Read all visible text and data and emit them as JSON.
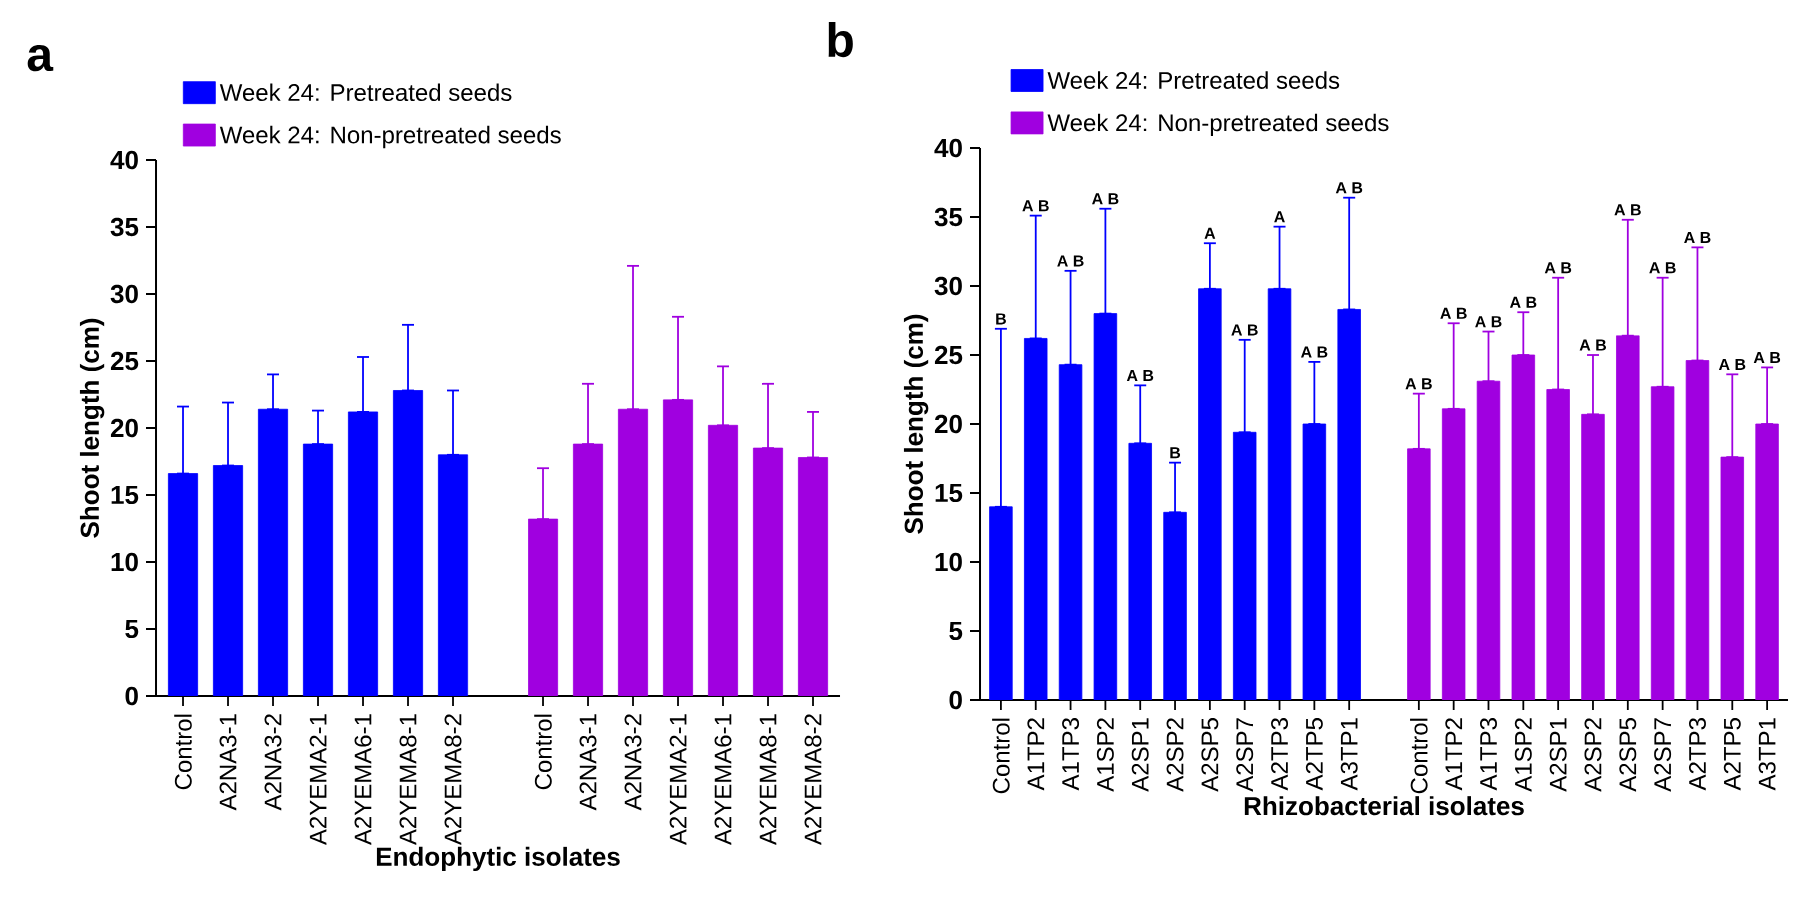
{
  "chart_data": [
    {
      "type": "bar",
      "title": "a",
      "xlabel": "Endophytic isolates",
      "ylabel": "Shoot length (cm)",
      "ylim": [
        0,
        40
      ],
      "yticks": [
        0,
        5,
        10,
        15,
        20,
        25,
        30,
        35,
        40
      ],
      "legend": "top left",
      "categories": [
        "Control",
        "A2NA3-1",
        "A2NA3-2",
        "A2YEMA2-1",
        "A2YEMA6-1",
        "A2YEMA8-1",
        "A2YEMA8-2",
        null,
        "Control",
        "A2NA3-1",
        "A2NA3-2",
        "A2YEMA2-1",
        "A2YEMA6-1",
        "A2YEMA8-1",
        "A2YEMA8-2"
      ],
      "series": [
        {
          "name": "Week 24: Pretreated seeds",
          "color": "#0000ff",
          "values": [
            16.6,
            17.2,
            21.4,
            18.8,
            21.2,
            22.8,
            18.0,
            null,
            null,
            null,
            null,
            null,
            null,
            null,
            null
          ],
          "errors": [
            [
              16.6,
              21.6
            ],
            [
              17.2,
              21.9
            ],
            [
              21.4,
              24.0
            ],
            [
              18.8,
              21.3
            ],
            [
              21.2,
              25.3
            ],
            [
              22.8,
              27.7
            ],
            [
              18.0,
              22.8
            ],
            null,
            null,
            null,
            null,
            null,
            null,
            null,
            null
          ]
        },
        {
          "name": "Week 24: Non-pretreated seeds",
          "color": "#a000e0",
          "values": [
            null,
            null,
            null,
            null,
            null,
            null,
            null,
            null,
            13.2,
            18.8,
            21.4,
            22.1,
            20.2,
            18.5,
            17.8
          ],
          "errors": [
            null,
            null,
            null,
            null,
            null,
            null,
            null,
            null,
            [
              13.2,
              17.0
            ],
            [
              18.8,
              23.3
            ],
            [
              21.4,
              32.1
            ],
            [
              22.1,
              28.3
            ],
            [
              20.2,
              24.6
            ],
            [
              18.5,
              23.3
            ],
            [
              17.8,
              21.2
            ]
          ]
        }
      ]
    },
    {
      "type": "bar",
      "title": "b",
      "xlabel": "Rhizobacterial isolates",
      "ylabel": "Shoot length (cm)",
      "ylim": [
        0,
        40
      ],
      "yticks": [
        0,
        5,
        10,
        15,
        20,
        25,
        30,
        35,
        40
      ],
      "legend": "top left",
      "categories": [
        "Control",
        "A1TP2",
        "A1TP3",
        "A1SP2",
        "A2SP1",
        "A2SP2",
        "A2SP5",
        "A2SP7",
        "A2TP3",
        "A2TP5",
        "A3TP1",
        null,
        "Control",
        "A1TP2",
        "A1TP3",
        "A1SP2",
        "A2SP1",
        "A2SP2",
        "A2SP5",
        "A2SP7",
        "A2TP3",
        "A2TP5",
        "A3TP1"
      ],
      "series": [
        {
          "name": "Week 24: Pretreated seeds",
          "color": "#0000ff",
          "values": [
            14.0,
            26.2,
            24.3,
            28.0,
            18.6,
            13.6,
            29.8,
            19.4,
            29.8,
            20.0,
            28.3,
            null,
            null,
            null,
            null,
            null,
            null,
            null,
            null,
            null,
            null,
            null,
            null
          ],
          "errors": [
            [
              14.0,
              26.9
            ],
            [
              26.2,
              35.1
            ],
            [
              24.3,
              31.1
            ],
            [
              28.0,
              35.6
            ],
            [
              18.6,
              22.8
            ],
            [
              13.6,
              17.2
            ],
            [
              29.8,
              33.1
            ],
            [
              19.4,
              26.1
            ],
            [
              29.8,
              34.3
            ],
            [
              20.0,
              24.5
            ],
            [
              28.3,
              36.4
            ],
            null,
            null,
            null,
            null,
            null,
            null,
            null,
            null,
            null,
            null,
            null,
            null
          ]
        },
        {
          "name": "Week 24: Non-pretreated seeds",
          "color": "#a000e0",
          "values": [
            null,
            null,
            null,
            null,
            null,
            null,
            null,
            null,
            null,
            null,
            null,
            null,
            18.2,
            21.1,
            23.1,
            25.0,
            22.5,
            20.7,
            26.4,
            22.7,
            24.6,
            17.6,
            20.0
          ],
          "errors": [
            null,
            null,
            null,
            null,
            null,
            null,
            null,
            null,
            null,
            null,
            null,
            null,
            [
              18.2,
              22.2
            ],
            [
              21.1,
              27.3
            ],
            [
              23.1,
              26.7
            ],
            [
              25.0,
              28.1
            ],
            [
              22.5,
              30.6
            ],
            [
              20.7,
              25.0
            ],
            [
              26.4,
              34.8
            ],
            [
              22.7,
              30.6
            ],
            [
              24.6,
              32.8
            ],
            [
              17.6,
              23.6
            ],
            [
              20.0,
              24.1
            ]
          ]
        }
      ],
      "annotations": [
        "B",
        "A B",
        "A B",
        "A B",
        "A B",
        "B",
        "A",
        "A B",
        "A",
        "A B",
        "A B",
        "A B",
        "A B",
        "A B",
        "A B",
        "A B",
        "A B",
        "A B",
        "A B",
        "A B",
        "A B",
        "A B"
      ]
    }
  ]
}
